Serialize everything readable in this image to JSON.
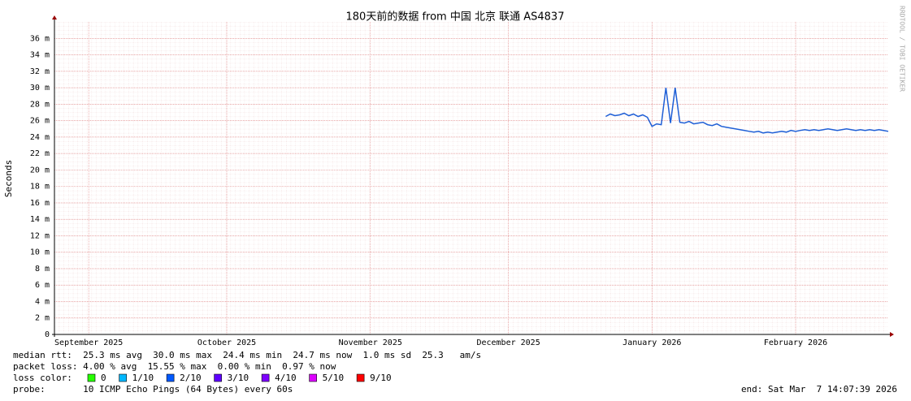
{
  "chart_data": {
    "type": "line",
    "title": "180天前的数据 from  中国 北京 联通 AS4837",
    "y_label": "Seconds",
    "watermark": "RRDTOOL / TOBI OETIKER",
    "color": "#1f5fd6",
    "xlim": [
      0,
      180
    ],
    "xticks": [
      {
        "value": 7.4,
        "label": "September 2025"
      },
      {
        "value": 37.2,
        "label": "October 2025"
      },
      {
        "value": 68.2,
        "label": "November 2025"
      },
      {
        "value": 98,
        "label": "December 2025"
      },
      {
        "value": 129,
        "label": "January 2026"
      },
      {
        "value": 160,
        "label": "February 2026"
      }
    ],
    "ylim": [
      0,
      0.038
    ],
    "yticks": [
      0,
      {
        "value": 0.002,
        "label": "2 m"
      },
      {
        "value": 0.004,
        "label": "4 m"
      },
      {
        "value": 0.006,
        "label": "6 m"
      },
      {
        "value": 0.008,
        "label": "8 m"
      },
      {
        "value": 0.01,
        "label": "10 m"
      },
      {
        "value": 0.012,
        "label": "12 m"
      },
      {
        "value": 0.014,
        "label": "14 m"
      },
      {
        "value": 0.016,
        "label": "16 m"
      },
      {
        "value": 0.018,
        "label": "18 m"
      },
      {
        "value": 0.02,
        "label": "20 m"
      },
      {
        "value": 0.022,
        "label": "22 m"
      },
      {
        "value": 0.024,
        "label": "24 m"
      },
      {
        "value": 0.026,
        "label": "26 m"
      },
      {
        "value": 0.028,
        "label": "28 m"
      },
      {
        "value": 0.03,
        "label": "30 m"
      },
      {
        "value": 0.032,
        "label": "32 m"
      },
      {
        "value": 0.034,
        "label": "34 m"
      },
      {
        "value": 0.036,
        "label": "36 m"
      }
    ],
    "grid": true,
    "x": [
      119,
      120,
      121,
      122,
      123,
      124,
      125,
      126,
      127,
      128,
      129,
      130,
      131,
      132,
      133,
      134,
      135,
      136,
      137,
      138,
      139,
      140,
      141,
      142,
      143,
      144,
      145,
      146,
      147,
      148,
      149,
      150,
      151,
      152,
      153,
      154,
      155,
      156,
      157,
      158,
      159,
      160,
      161,
      162,
      163,
      164,
      165,
      166,
      167,
      168,
      169,
      170,
      171,
      172,
      173,
      174,
      175,
      176,
      177,
      178,
      179,
      180
    ],
    "values": [
      0.0265,
      0.0268,
      0.0266,
      0.0267,
      0.0269,
      0.0266,
      0.0268,
      0.0265,
      0.0267,
      0.0264,
      0.0253,
      0.0256,
      0.0255,
      0.03,
      0.0257,
      0.03,
      0.0258,
      0.0257,
      0.0259,
      0.0256,
      0.0257,
      0.0258,
      0.0255,
      0.0254,
      0.0256,
      0.0253,
      0.0252,
      0.0251,
      0.025,
      0.0249,
      0.0248,
      0.0247,
      0.0246,
      0.0247,
      0.0245,
      0.0246,
      0.0245,
      0.0246,
      0.0247,
      0.0246,
      0.0248,
      0.0247,
      0.0248,
      0.0249,
      0.0248,
      0.0249,
      0.0248,
      0.0249,
      0.025,
      0.0249,
      0.0248,
      0.0249,
      0.025,
      0.0249,
      0.0248,
      0.0249,
      0.0248,
      0.0249,
      0.0248,
      0.0249,
      0.0248,
      0.0247
    ],
    "stats": [
      "median rtt:  25.3 ms avg  30.0 ms max  24.4 ms min  24.7 ms now  1.0 ms sd  25.3   am/s",
      "packet loss: 4.00 % avg  15.55 % max  0.00 % min  0.97 % now"
    ],
    "loss_color_label": "loss color:",
    "loss_colors": [
      {
        "label": "0",
        "color": "#26ff00"
      },
      {
        "label": "1/10",
        "color": "#00b8ff"
      },
      {
        "label": "2/10",
        "color": "#0059ff"
      },
      {
        "label": "3/10",
        "color": "#5e00ff"
      },
      {
        "label": "4/10",
        "color": "#7e00ff"
      },
      {
        "label": "5/10",
        "color": "#dd00ff"
      },
      {
        "label": "9/10",
        "color": "#ff0000"
      }
    ],
    "probe": "probe:       10 ICMP Echo Pings (64 Bytes) every 60s",
    "end": "end: Sat Mar  7 14:07:39 2026"
  }
}
